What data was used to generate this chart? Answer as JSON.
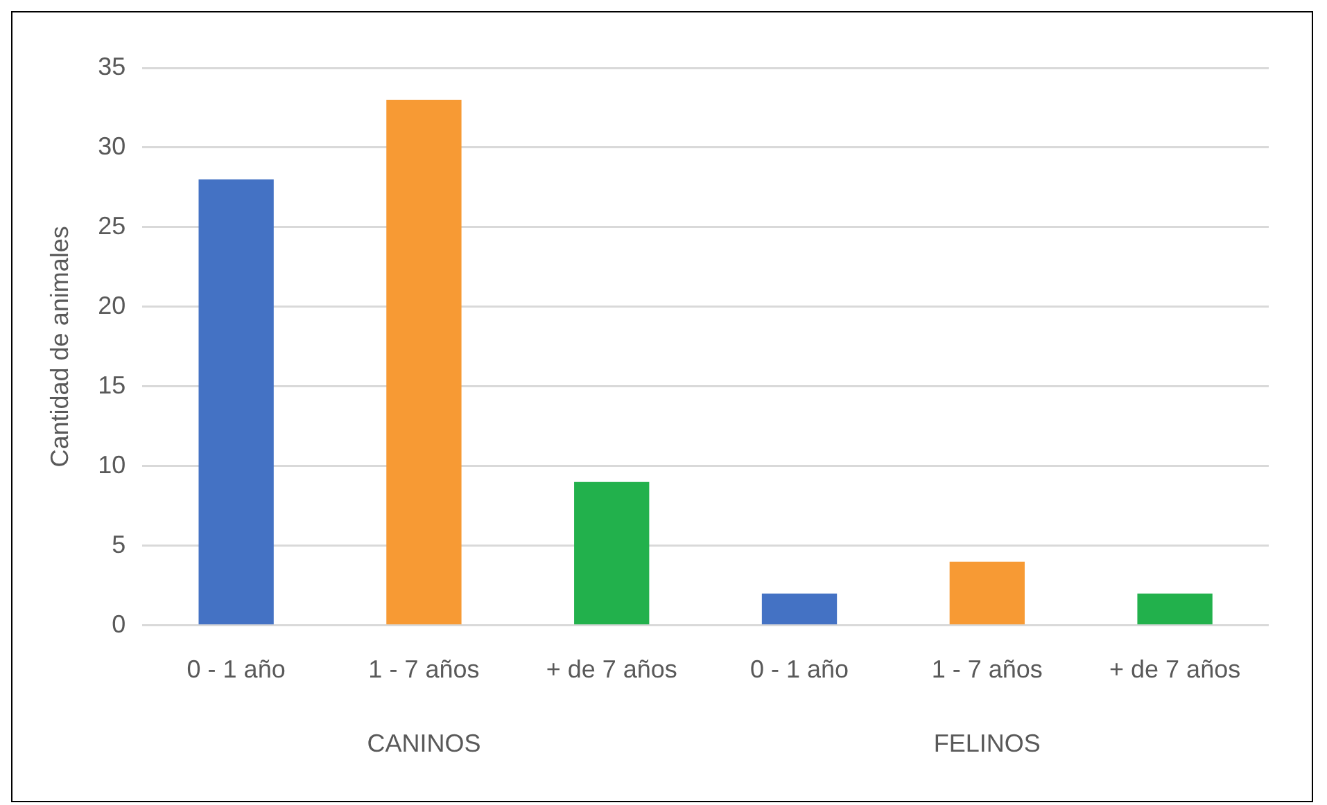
{
  "chart_data": {
    "type": "bar",
    "ylabel": "Cantidad de animales",
    "categories": [
      "0 - 1 año",
      "1 - 7 años",
      "+ de 7 años",
      "0 - 1 año",
      "1 - 7 años",
      "+ de 7 años"
    ],
    "values": [
      28,
      33,
      9,
      2,
      4,
      2
    ],
    "colors": [
      "#4472c4",
      "#f79a34",
      "#22b14c",
      "#4472c4",
      "#f79a34",
      "#22b14c"
    ],
    "ylim": [
      0,
      35
    ],
    "yticks": [
      0,
      5,
      10,
      15,
      20,
      25,
      30,
      35
    ],
    "grid": "y",
    "legend": false,
    "annotations": [
      "CANINOS",
      "FELINOS"
    ]
  }
}
